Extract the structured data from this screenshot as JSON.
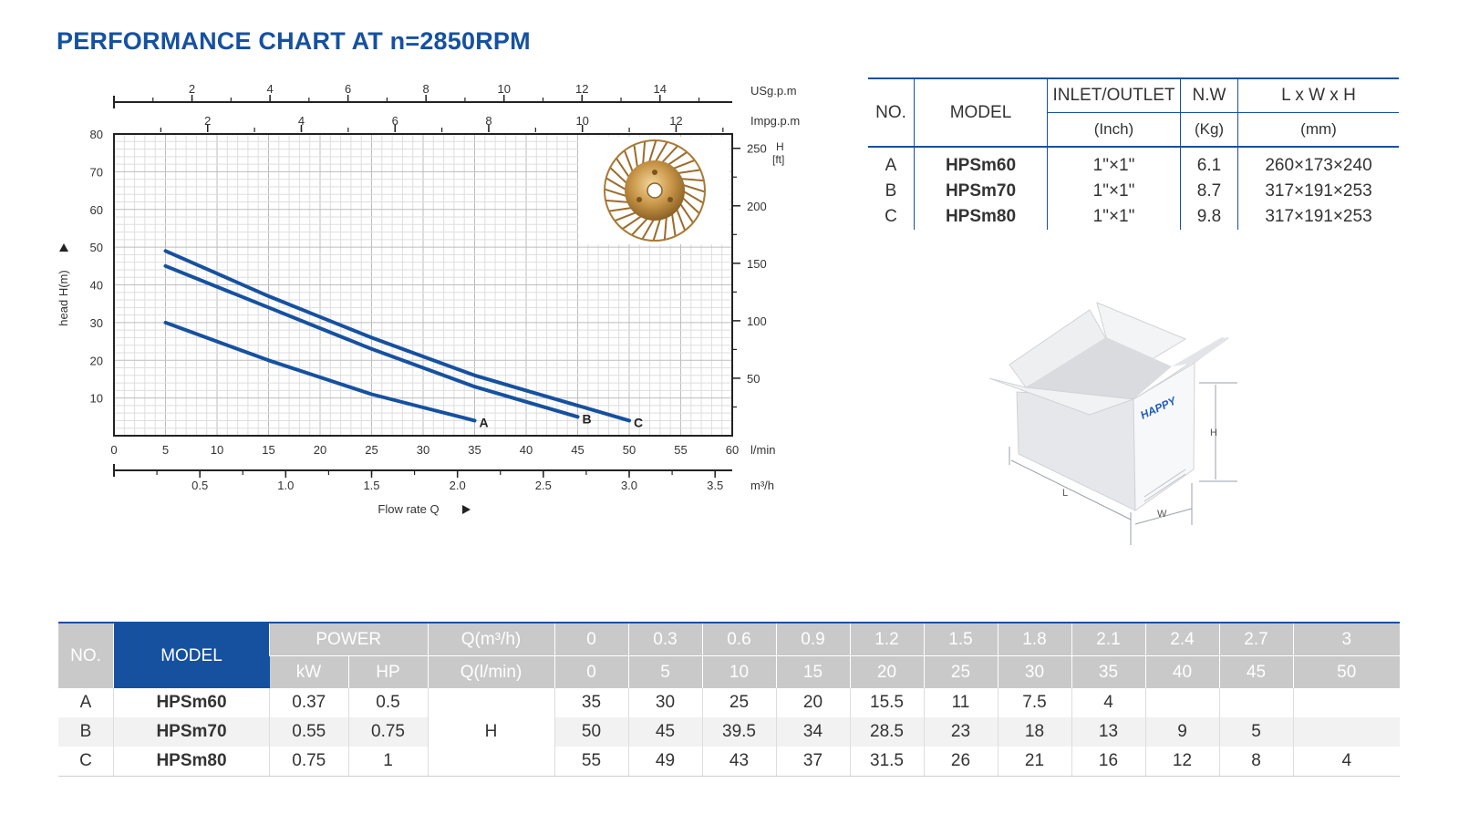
{
  "title": "PERFORMANCE CHART AT n=2850RPM",
  "chart_data": {
    "type": "line",
    "xlabel": "Flow rate Q",
    "ylabel": "head H(m)",
    "x_unit": "l/min",
    "xlim": [
      0,
      60
    ],
    "ylim": [
      0,
      80
    ],
    "x_ticks": [
      "0",
      "5",
      "10",
      "15",
      "20",
      "25",
      "30",
      "35",
      "40",
      "45",
      "50",
      "55",
      "60"
    ],
    "y_ticks": [
      "10",
      "20",
      "30",
      "40",
      "50",
      "60",
      "70",
      "80"
    ],
    "right_axis": {
      "label": "H",
      "unit": "[ft]",
      "ticks": [
        "50",
        "100",
        "150",
        "200",
        "250"
      ]
    },
    "top_axis_usgpm": {
      "unit": "USg.p.m",
      "ticks": [
        "2",
        "4",
        "6",
        "8",
        "10",
        "12",
        "14"
      ]
    },
    "top_axis_impgpm": {
      "unit": "Impg.p.m",
      "ticks": [
        "2",
        "4",
        "6",
        "8",
        "10",
        "12"
      ]
    },
    "bottom_axis_m3h": {
      "unit": "m³/h",
      "ticks": [
        "0.5",
        "1.0",
        "1.5",
        "2.0",
        "2.5",
        "3.0",
        "3.5"
      ]
    },
    "grid": true,
    "series": [
      {
        "name": "A",
        "color": "#1651a0",
        "x": [
          5,
          10,
          15,
          20,
          25,
          30,
          35
        ],
        "y": [
          30,
          25,
          20,
          15.5,
          11,
          7.5,
          4
        ]
      },
      {
        "name": "B",
        "color": "#1651a0",
        "x": [
          5,
          10,
          15,
          20,
          25,
          30,
          35,
          40,
          45
        ],
        "y": [
          45,
          39.5,
          34,
          28.5,
          23,
          18,
          13,
          9,
          5
        ]
      },
      {
        "name": "C",
        "color": "#1651a0",
        "x": [
          5,
          10,
          15,
          20,
          25,
          30,
          35,
          40,
          45,
          50
        ],
        "y": [
          49,
          43,
          37,
          31.5,
          26,
          21,
          16,
          12,
          8,
          4
        ]
      }
    ]
  },
  "spec_table": {
    "headers": {
      "no": "NO.",
      "model": "MODEL",
      "inlet": "INLET/OUTLET",
      "nw": "N.W",
      "dims": "L x W x H"
    },
    "units": {
      "inlet": "(Inch)",
      "nw": "(Kg)",
      "dims": "(mm)"
    },
    "rows": [
      {
        "no": "A",
        "model": "HPSm60",
        "inlet": "1\"×1\"",
        "nw": "6.1",
        "dims": "260×173×240"
      },
      {
        "no": "B",
        "model": "HPSm70",
        "inlet": "1\"×1\"",
        "nw": "8.7",
        "dims": "317×191×253"
      },
      {
        "no": "C",
        "model": "HPSm80",
        "inlet": "1\"×1\"",
        "nw": "9.8",
        "dims": "317×191×253"
      }
    ]
  },
  "box": {
    "brand": "HAPPY",
    "dim_l": "L",
    "dim_w": "W",
    "dim_h": "H"
  },
  "performance_table": {
    "no": "NO.",
    "model": "MODEL",
    "power": "POWER",
    "kw": "kW",
    "hp": "HP",
    "q_m3h": "Q(m³/h)",
    "q_lmin": "Q(l/min)",
    "h_label": "H",
    "q_m3h_values": [
      "0",
      "0.3",
      "0.6",
      "0.9",
      "1.2",
      "1.5",
      "1.8",
      "2.1",
      "2.4",
      "2.7",
      "3"
    ],
    "q_lmin_values": [
      "0",
      "5",
      "10",
      "15",
      "20",
      "25",
      "30",
      "35",
      "40",
      "45",
      "50"
    ],
    "rows": [
      {
        "no": "A",
        "model": "HPSm60",
        "kw": "0.37",
        "hp": "0.5",
        "h": [
          "35",
          "30",
          "25",
          "20",
          "15.5",
          "11",
          "7.5",
          "4",
          "",
          "",
          ""
        ]
      },
      {
        "no": "B",
        "model": "HPSm70",
        "kw": "0.55",
        "hp": "0.75",
        "h": [
          "50",
          "45",
          "39.5",
          "34",
          "28.5",
          "23",
          "18",
          "13",
          "9",
          "5",
          ""
        ]
      },
      {
        "no": "C",
        "model": "HPSm80",
        "kw": "0.75",
        "hp": "1",
        "h": [
          "55",
          "49",
          "43",
          "37",
          "31.5",
          "26",
          "21",
          "16",
          "12",
          "8",
          "4"
        ]
      }
    ]
  }
}
